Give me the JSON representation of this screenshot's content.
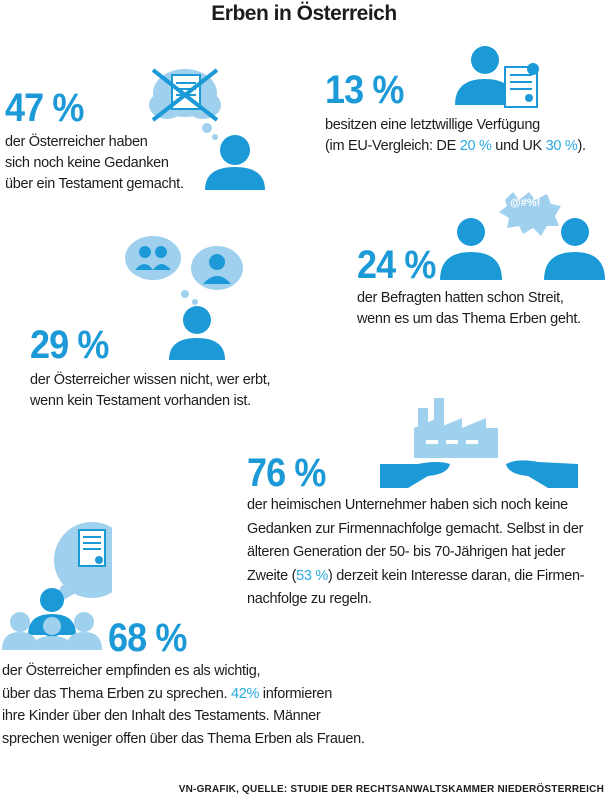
{
  "title": "Erben in Österreich",
  "colors": {
    "primary": "#1b9ad7",
    "light": "#9fd0ee",
    "highlight": "#2aa9e0"
  },
  "facts": [
    {
      "value": "47 %",
      "lines": [
        "der Österreicher haben",
        "sich noch keine Gedanken",
        "über ein Testament gemacht."
      ],
      "icon": "thinking-person-crossed-testament-icon"
    },
    {
      "value": "13 %",
      "line1": "besitzen eine letztwillige Verfügung",
      "line2_a": "(im EU-Vergleich: DE ",
      "line2_hl1": "20 %",
      "line2_b": " und UK ",
      "line2_hl2": "30 %",
      "line2_c": ").",
      "icon": "person-with-certificate-icon"
    },
    {
      "value": "24 %",
      "lines": [
        "der Befragten hatten schon Streit,",
        "wenn es um das Thema Erben geht."
      ],
      "bubble": "@#%!",
      "icon": "arguing-people-icon"
    },
    {
      "value": "29 %",
      "lines": [
        "der Österreicher wissen nicht, wer erbt,",
        "wenn kein Testament vorhanden ist."
      ],
      "icon": "thinking-person-heirs-icon"
    },
    {
      "value": "76 %",
      "lines": [
        "der heimischen Unternehmer haben sich noch keine",
        "Gedanken zur Firmennachfolge gemacht. Selbst in der",
        "älteren Generation der 50- bis 70-Jährigen hat jeder"
      ],
      "line4_a": "Zweite (",
      "line4_hl": "53 %",
      "line4_b": ") derzeit kein Interesse daran, die Firmen-",
      "line5": "nachfolge zu regeln.",
      "icon": "factory-hands-icon"
    },
    {
      "value": "68 %",
      "line1": "der Österreicher empfinden es als wichtig,",
      "line2_a": "über das Thema Erben zu sprechen. ",
      "line2_hl": "42%",
      "line2_b": " informieren",
      "line3": "ihre Kinder über den Inhalt des Testaments. Männer",
      "line4": "sprechen weniger offen über das Thema Erben als Frauen.",
      "icon": "family-talking-testament-icon"
    }
  ],
  "footer": "VN-GRAFIK, QUELLE: STUDIE DER RECHTSANWALTSKAMMER NIEDERÖSTERREICH"
}
